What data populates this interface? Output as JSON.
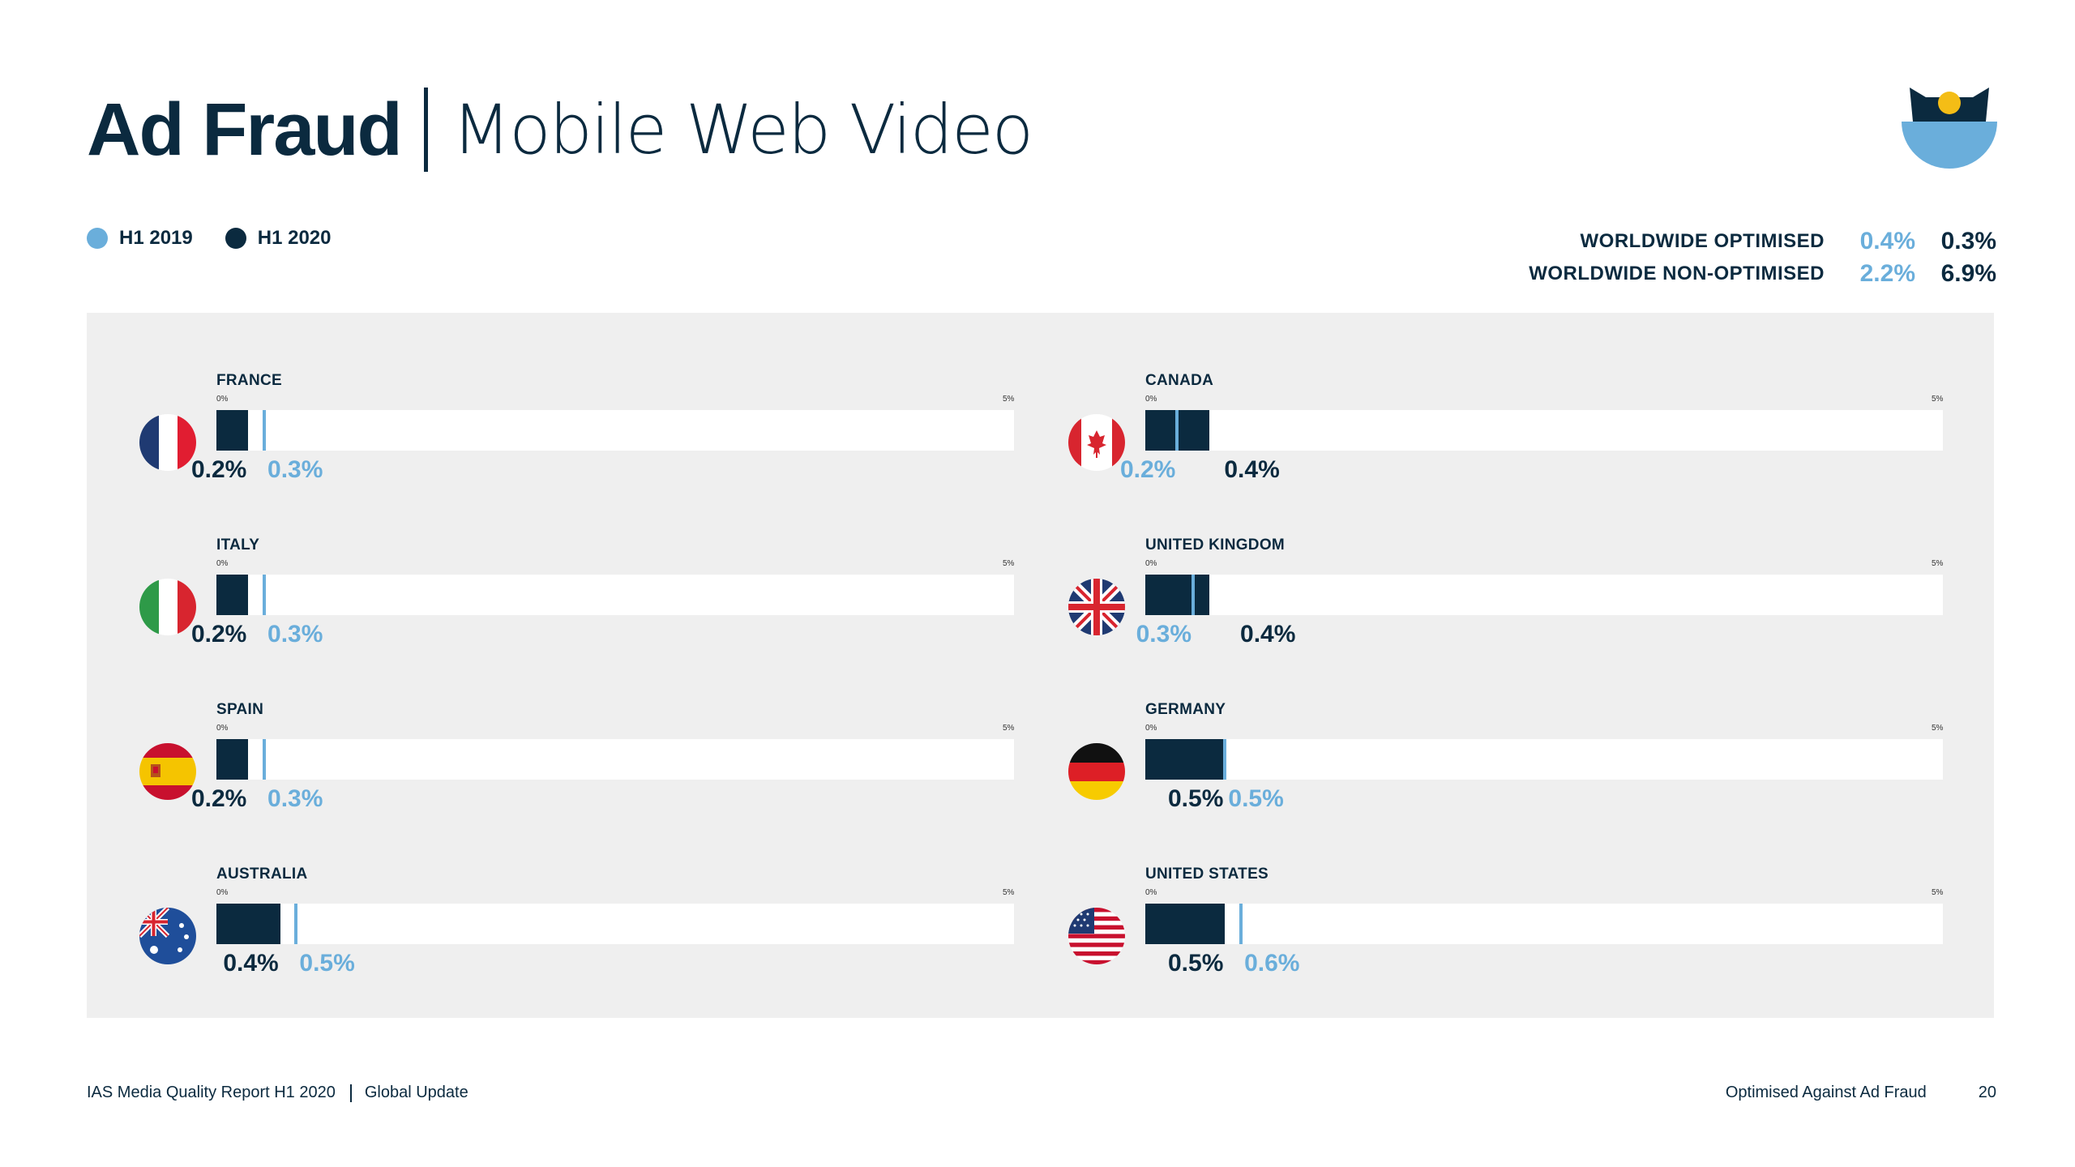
{
  "header": {
    "title_bold": "Ad Fraud",
    "title_light": "Mobile Web Video"
  },
  "legend": [
    {
      "label": "H1 2019",
      "color": "#6aaedb"
    },
    {
      "label": "H1 2020",
      "color": "#0b2a3f"
    }
  ],
  "worldwide": [
    {
      "label": "WORLDWIDE OPTIMISED",
      "h1_2019": "0.4%",
      "h1_2020": "0.3%"
    },
    {
      "label": "WORLDWIDE NON-OPTIMISED",
      "h1_2019": "2.2%",
      "h1_2020": "6.9%"
    }
  ],
  "colors": {
    "h1_2019": "#6aaedb",
    "h1_2020": "#0b2a3f",
    "panel": "#efefef",
    "text": "#0b2a3f"
  },
  "chart_data": {
    "type": "bar",
    "axis_min_label": "0%",
    "axis_max_label": "5%",
    "xlim": [
      0,
      5
    ],
    "unit": "%",
    "series": [
      {
        "name": "H1 2019",
        "color": "#6aaedb"
      },
      {
        "name": "H1 2020",
        "color": "#0b2a3f"
      }
    ],
    "countries": [
      {
        "name": "FRANCE",
        "flag": "france-flag-icon",
        "h1_2019": 0.3,
        "h1_2020": 0.2,
        "label_2019": "0.3%",
        "label_2020": "0.2%"
      },
      {
        "name": "ITALY",
        "flag": "italy-flag-icon",
        "h1_2019": 0.3,
        "h1_2020": 0.2,
        "label_2019": "0.3%",
        "label_2020": "0.2%"
      },
      {
        "name": "SPAIN",
        "flag": "spain-flag-icon",
        "h1_2019": 0.3,
        "h1_2020": 0.2,
        "label_2019": "0.3%",
        "label_2020": "0.2%"
      },
      {
        "name": "AUSTRALIA",
        "flag": "australia-flag-icon",
        "h1_2019": 0.5,
        "h1_2020": 0.4,
        "label_2019": "0.5%",
        "label_2020": "0.4%"
      },
      {
        "name": "CANADA",
        "flag": "canada-flag-icon",
        "h1_2019": 0.2,
        "h1_2020": 0.4,
        "label_2019": "0.2%",
        "label_2020": "0.4%"
      },
      {
        "name": "UNITED KINGDOM",
        "flag": "uk-flag-icon",
        "h1_2019": 0.3,
        "h1_2020": 0.4,
        "label_2019": "0.3%",
        "label_2020": "0.4%"
      },
      {
        "name": "GERMANY",
        "flag": "germany-flag-icon",
        "h1_2019": 0.5,
        "h1_2020": 0.5,
        "label_2019": "0.5%",
        "label_2020": "0.5%"
      },
      {
        "name": "UNITED STATES",
        "flag": "usa-flag-icon",
        "h1_2019": 0.6,
        "h1_2020": 0.5,
        "label_2019": "0.6%",
        "label_2020": "0.5%"
      }
    ]
  },
  "footer": {
    "report": "IAS Media Quality Report H1 2020",
    "update": "Global Update",
    "section": "Optimised Against Ad Fraud",
    "page": "20"
  }
}
